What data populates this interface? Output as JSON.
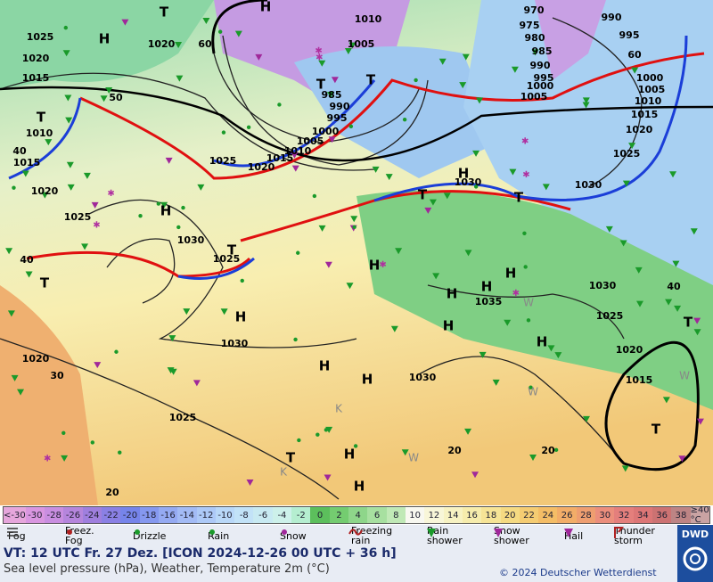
{
  "map": {
    "labels": [
      "T",
      "H",
      "1010",
      "1025",
      "H",
      "1020",
      "1005",
      "1020",
      "1015",
      "T",
      "T",
      "985",
      "990",
      "995",
      "T",
      "1010",
      "1000",
      "1005",
      "1010",
      "1015",
      "1025",
      "1020",
      "1015",
      "1020",
      "H",
      "1025",
      "1030",
      "1025",
      "T",
      "40",
      "T",
      "H",
      "1030",
      "1020",
      "30",
      "1030",
      "1025",
      "T",
      "H",
      "H",
      "20",
      "990",
      "970",
      "975",
      "980",
      "985",
      "990",
      "995",
      "1000",
      "995",
      "1005",
      "1000",
      "1005",
      "1010",
      "1015",
      "1020",
      "1025",
      "H",
      "1030",
      "1030",
      "H",
      "H",
      "H",
      "1035",
      "1030",
      "H",
      "H",
      "1025",
      "H",
      "1020",
      "1015",
      "H",
      "H",
      "T",
      "T",
      "T",
      "T",
      "60",
      "50",
      "40",
      "60",
      "40",
      "20",
      "20",
      "W",
      "W",
      "K",
      "W",
      "K",
      "W"
    ]
  },
  "scale": {
    "cells": [
      {
        "label": "<-30",
        "color": "#e6a6dc"
      },
      {
        "label": "-30",
        "color": "#d996e0"
      },
      {
        "label": "-28",
        "color": "#c98ee0"
      },
      {
        "label": "-26",
        "color": "#b585dc"
      },
      {
        "label": "-24",
        "color": "#9f7fde"
      },
      {
        "label": "-22",
        "color": "#8a80e4"
      },
      {
        "label": "-20",
        "color": "#7684ea"
      },
      {
        "label": "-18",
        "color": "#8598ef"
      },
      {
        "label": "-16",
        "color": "#95aaf2"
      },
      {
        "label": "-14",
        "color": "#a3bbf5"
      },
      {
        "label": "-12",
        "color": "#adc9f7"
      },
      {
        "label": "-10",
        "color": "#b9d8f8"
      },
      {
        "label": "-8",
        "color": "#c2e2f7"
      },
      {
        "label": "-6",
        "color": "#c8eaf2"
      },
      {
        "label": "-4",
        "color": "#cdf1ea"
      },
      {
        "label": "-2",
        "color": "#b5eed0"
      },
      {
        "label": "0",
        "color": "#5cbf5c"
      },
      {
        "label": "2",
        "color": "#74cc70"
      },
      {
        "label": "4",
        "color": "#8ed68a"
      },
      {
        "label": "6",
        "color": "#a7e0a0"
      },
      {
        "label": "8",
        "color": "#c0e9b6"
      },
      {
        "label": "10",
        "color": "#f8f8f0"
      },
      {
        "label": "12",
        "color": "#f8f6d8"
      },
      {
        "label": "14",
        "color": "#f7f2c2"
      },
      {
        "label": "16",
        "color": "#f6ecac"
      },
      {
        "label": "18",
        "color": "#f6e496"
      },
      {
        "label": "20",
        "color": "#f5da82"
      },
      {
        "label": "22",
        "color": "#f5cc72"
      },
      {
        "label": "24",
        "color": "#f4bd66"
      },
      {
        "label": "26",
        "color": "#f2ad68"
      },
      {
        "label": "28",
        "color": "#ee9e70"
      },
      {
        "label": "30",
        "color": "#eb8e7c"
      },
      {
        "label": "32",
        "color": "#e47f7c"
      },
      {
        "label": "34",
        "color": "#dc7676"
      },
      {
        "label": "36",
        "color": "#cc7272"
      },
      {
        "label": "38",
        "color": "#bd8484"
      },
      {
        "label": "≥40 °C",
        "color": "#c9a3a3"
      }
    ]
  },
  "legend": [
    "Fog",
    "Freez. Fog",
    "Drizzle",
    "Rain",
    "Snow",
    "Freezing rain",
    "Rain shower",
    "Snow shower",
    "Hail",
    "Thunder storm"
  ],
  "logo": "DWD",
  "footer": {
    "valid_time": "VT: 12 UTC Fr.  27 Dez. [ICON 2024-12-26  00 UTC + 36 h]",
    "description": "Sea level pressure (hPa), Weather, Temperature 2m (°C)",
    "copyright": "© 2024 Deutscher Wetterdienst"
  }
}
